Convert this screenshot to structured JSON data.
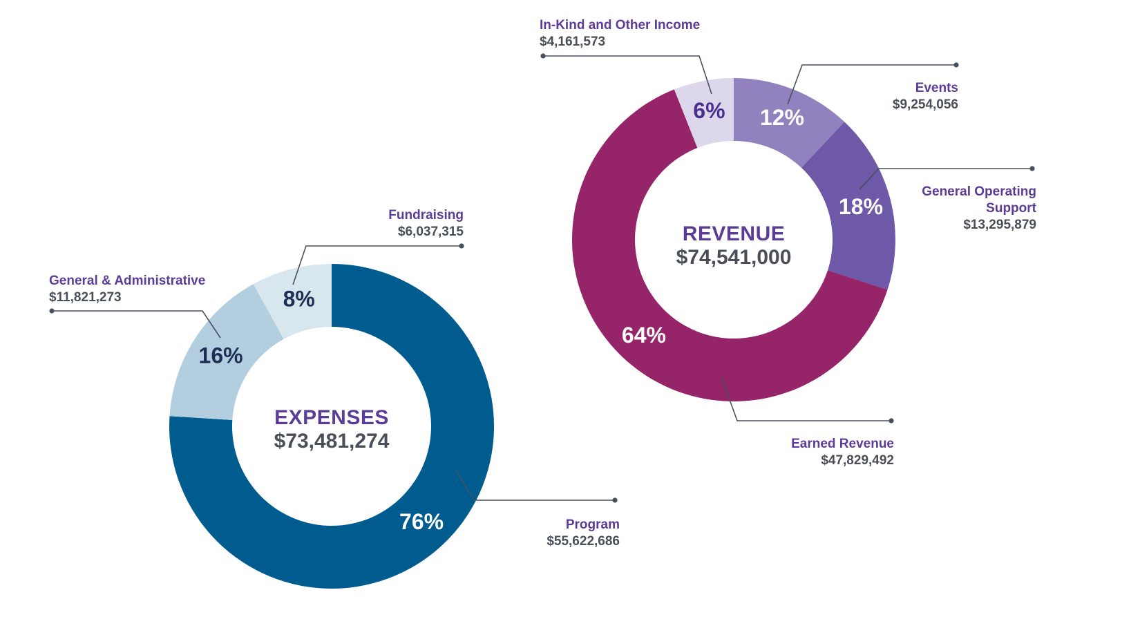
{
  "colors": {
    "title": "#5b3c96",
    "total": "#4a4f57",
    "label_name": "#5b3c96",
    "label_amount": "#4a4f57",
    "leader": "#4a4f5e",
    "dark_text": "#1e2f56",
    "light_text": "#ffffff",
    "revenue_dark_text": "#4a2f8f"
  },
  "chart_data": [
    {
      "type": "pie",
      "variant": "donut",
      "title": "EXPENSES",
      "total": "$73,481,274",
      "series": [
        {
          "name": "Program",
          "amount": "$55,622,686",
          "value": 76,
          "percent_label": "76%",
          "color": "#005b8f",
          "text_color": "#ffffff"
        },
        {
          "name": "General & Administrative",
          "amount": "$11,821,273",
          "value": 16,
          "percent_label": "16%",
          "color": "#b3cfdf",
          "text_color": "#1e2f56"
        },
        {
          "name": "Fundraising",
          "amount": "$6,037,315",
          "value": 8,
          "percent_label": "8%",
          "color": "#d8e6ee",
          "text_color": "#1e2f56"
        }
      ]
    },
    {
      "type": "pie",
      "variant": "donut",
      "title": "REVENUE",
      "total": "$74,541,000",
      "series": [
        {
          "name": "Events",
          "amount": "$9,254,056",
          "value": 12,
          "percent_label": "12%",
          "color": "#9181bf",
          "text_color": "#ffffff"
        },
        {
          "name": "General Operating Support",
          "name_lines": [
            "General Operating",
            "Support"
          ],
          "amount": "$13,295,879",
          "value": 18,
          "percent_label": "18%",
          "color": "#6e58a8",
          "text_color": "#ffffff"
        },
        {
          "name": "Earned Revenue",
          "amount": "$47,829,492",
          "value": 64,
          "percent_label": "64%",
          "color": "#952468",
          "text_color": "#ffffff"
        },
        {
          "name": "In-Kind and Other Income",
          "amount": "$4,161,573",
          "value": 6,
          "percent_label": "6%",
          "color": "#ddd7ec",
          "text_color": "#4a2f8f"
        }
      ]
    }
  ]
}
